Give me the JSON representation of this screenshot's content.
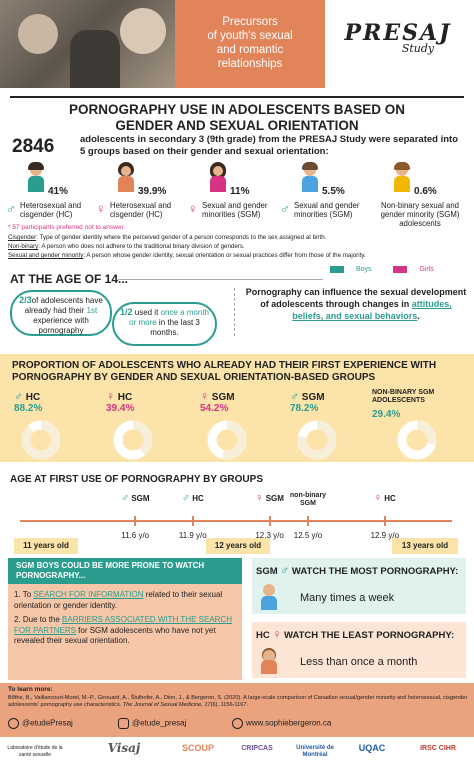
{
  "header": {
    "box_text": [
      "Precursors",
      "of youth's sexual",
      "and romantic",
      "relationships"
    ],
    "logo": "PRESAJ",
    "logo_sub": "Study"
  },
  "title": [
    "PORNOGRAPHY USE IN ADOLESCENTS BASED ON",
    "GENDER AND SEXUAL ORIENTATION"
  ],
  "intro": {
    "number": "2846",
    "text": "adolescents in secondary 3 (9th grade) from the PRESAJ Study were separated into 5 groups based on their gender and sexual orientation:"
  },
  "groups": [
    {
      "percent": "41%",
      "symbol": "♂",
      "label": "Heterosexual and cisgender (HC)",
      "body_color": "#2a9d8f"
    },
    {
      "percent": "39.9%",
      "symbol": "♀",
      "label": "Heterosexual and cisgender (HC)",
      "body_color": "#e2845a"
    },
    {
      "percent": "11%",
      "symbol": "♀",
      "label": "Sexual and gender minorities (SGM)",
      "body_color": "#d63384"
    },
    {
      "percent": "5.5%",
      "symbol": "♂",
      "label": "Sexual and gender minorities (SGM)",
      "body_color": "#4aa3df"
    },
    {
      "percent": "0.6%",
      "symbol": "",
      "label": "Non-binary sexual and gender minority (SGM) adolescents",
      "body_color": "#f2b705"
    }
  ],
  "note": "* 57 participants preferred not to answer.",
  "definitions": [
    {
      "term": "Cisgender",
      "text": ": Type of gender identity where the perceived gender of a person corresponds to the sex assigned at birth."
    },
    {
      "term": "Non-binary",
      "text": ": A person who does not adhere to the traditional binary division of genders."
    },
    {
      "term": "Sexual and gender minority",
      "text": ": A person whose gender identity, sexual orientation or sexual practices differ from those of the majority."
    }
  ],
  "age14": {
    "heading": "AT THE AGE OF 14...",
    "legend_boys": "Boys",
    "legend_girls": "Girls",
    "bubble1": {
      "frac": "2/3",
      "text1": "of adolescents have already had their ",
      "ord": "1st",
      "text2": " experience with pornography"
    },
    "bubble2": {
      "frac": "1/2",
      "text1": " used it ",
      "freq": "once a month or more",
      "text2": " in the last 3 months."
    },
    "influence": {
      "text": "Pornography can influence the sexual development of adolescents through changes in ",
      "highlight": "attitudes, beliefs, and sexual behaviors",
      "end": "."
    }
  },
  "proportion": {
    "title": "PROPORTION OF ADOLESCENTS WHO ALREADY HAD THEIR FIRST EXPERIENCE WITH PORNOGRAPHY BY GENDER AND SEXUAL ORIENTATION-BASED GROUPS",
    "items": [
      {
        "symbol": "♂",
        "label": "HC",
        "value": "88.2%",
        "fraction": 0.882,
        "color": "#2a9d8f"
      },
      {
        "symbol": "♀",
        "label": "HC",
        "value": "39.4%",
        "fraction": 0.394,
        "color": "#d63384"
      },
      {
        "symbol": "♀",
        "label": "SGM",
        "value": "54.2%",
        "fraction": 0.542,
        "color": "#d63384"
      },
      {
        "symbol": "♂",
        "label": "SGM",
        "value": "78.2%",
        "fraction": 0.782,
        "color": "#2a9d8f"
      },
      {
        "symbol": "",
        "label": "NON-BINARY SGM ADOLESCENTS",
        "value": "29.4%",
        "fraction": 0.294,
        "color": "#2a9d8f"
      }
    ]
  },
  "first_use": {
    "heading": "AGE AT FIRST USE OF PORNOGRAPHY BY GROUPS",
    "markers": [
      {
        "symbol": "♂",
        "label": "SGM",
        "value": "11.6 y/o"
      },
      {
        "symbol": "♂",
        "label": "HC",
        "value": "11.9 y/o"
      },
      {
        "symbol": "♀",
        "label": "SGM",
        "value": "12.3 y/o"
      },
      {
        "symbol": "",
        "label": "non-binary SGM",
        "value": "12.5 y/o"
      },
      {
        "symbol": "♀",
        "label": "HC",
        "value": "12.9 y/o"
      }
    ],
    "years": [
      "11 years old",
      "12 years old",
      "13 years old"
    ]
  },
  "sgm_boys": {
    "title": "SGM BOYS COULD BE MORE PRONE TO WATCH PORNOGRAPHY...",
    "p1_pre": "1. To ",
    "p1_link": "SEARCH FOR INFORMATION",
    "p1_post": " related to their sexual orientation or gender identity.",
    "p2_pre": "2. Due to the ",
    "p2_link": "BARRIERS ASSOCIATED WITH THE SEARCH FOR PARTNERS",
    "p2_post": " for SGM adolescents who have not yet revealed their sexual orientation."
  },
  "most": {
    "label": "SGM",
    "symbol": "♂",
    "title": "WATCH THE MOST PORNOGRAPHY:",
    "value": "Many times a week"
  },
  "least": {
    "label": "HC",
    "symbol": "♀",
    "title": "WATCH THE LEAST PORNOGRAPHY:",
    "value": "Less than once a month"
  },
  "learn": {
    "heading": "To learn more:",
    "reference": "Bőthe, B., Vaillancourt-Morel, M.-P., Girouard, A., Štulhofer, A., Dion, J., & Bergeron, S. (2020). A large-scale comparison of Canadian sexual/gender minority and heterosexual, cisgender adolescents' pornography use characteristics.",
    "journal": "The Journal of Sexual Medicine, 17",
    "pages": "(6), 1156-1167.",
    "facebook": "@etudePresaj",
    "instagram": "@etude_presaj",
    "website": "www.sophiebergeron.ca"
  },
  "logos": [
    "Laboratoire d'étude de la santé sexuelle",
    "Visaj",
    "SCOUP",
    "CRIPCAS",
    "Université de Montréal",
    "UQAC",
    "IRSC CIHR"
  ]
}
